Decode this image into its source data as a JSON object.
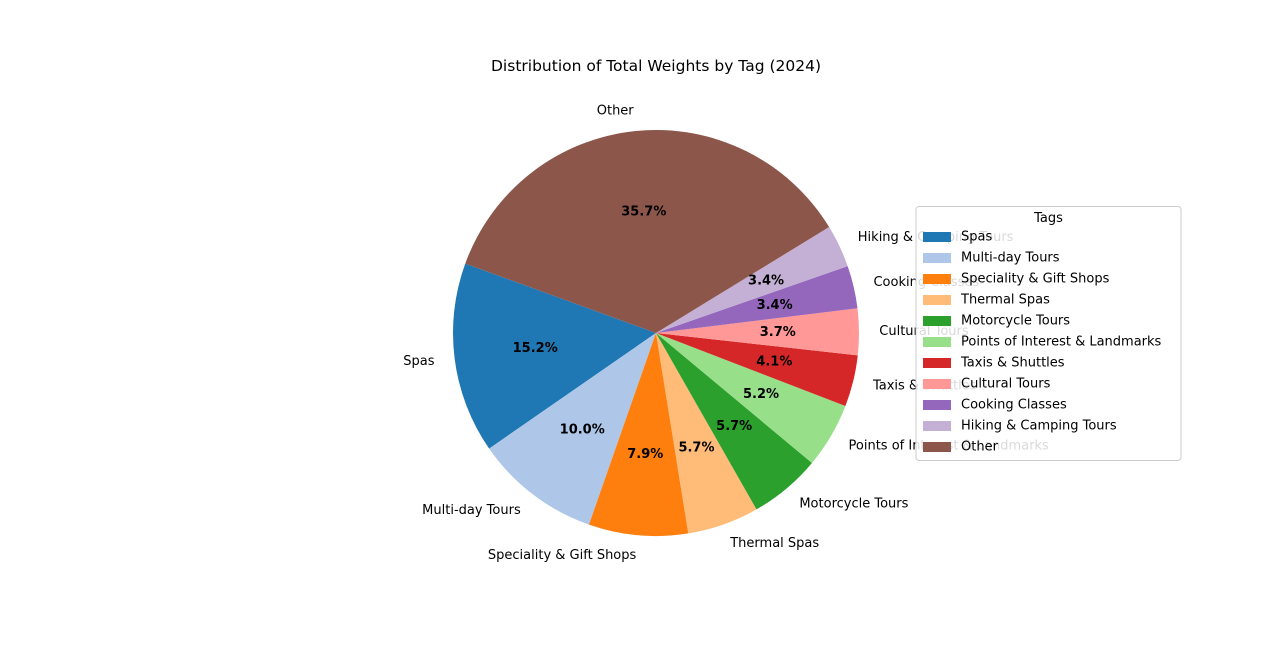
{
  "chart_data": {
    "type": "pie",
    "title": "Distribution of Total Weights by Tag (2024)",
    "slices": [
      {
        "label": "Spas",
        "pct_label": "15.2%",
        "value": 15.2,
        "color": "#1f77b4"
      },
      {
        "label": "Multi-day Tours",
        "pct_label": "10.0%",
        "value": 10.0,
        "color": "#aec7e8"
      },
      {
        "label": "Speciality & Gift Shops",
        "pct_label": "7.9%",
        "value": 7.9,
        "color": "#ff7f0e"
      },
      {
        "label": "Thermal Spas",
        "pct_label": "5.7%",
        "value": 5.7,
        "color": "#ffbb78"
      },
      {
        "label": "Motorcycle Tours",
        "pct_label": "5.7%",
        "value": 5.7,
        "color": "#2ca02c"
      },
      {
        "label": "Points of Interest & Landmarks",
        "pct_label": "5.2%",
        "value": 5.2,
        "color": "#98df8a"
      },
      {
        "label": "Taxis & Shuttles",
        "pct_label": "4.1%",
        "value": 4.1,
        "color": "#d62728"
      },
      {
        "label": "Cultural Tours",
        "pct_label": "3.7%",
        "value": 3.7,
        "color": "#ff9896"
      },
      {
        "label": "Cooking Classes",
        "pct_label": "3.4%",
        "value": 3.4,
        "color": "#9467bd"
      },
      {
        "label": "Hiking & Camping Tours",
        "pct_label": "3.4%",
        "value": 3.4,
        "color": "#c5b0d5"
      },
      {
        "label": "Other",
        "pct_label": "35.7%",
        "value": 35.7,
        "color": "#8c564b"
      }
    ],
    "start_angle_deg": 160,
    "direction": "counterclockwise",
    "legend": {
      "title": "Tags",
      "placement": "right"
    }
  }
}
